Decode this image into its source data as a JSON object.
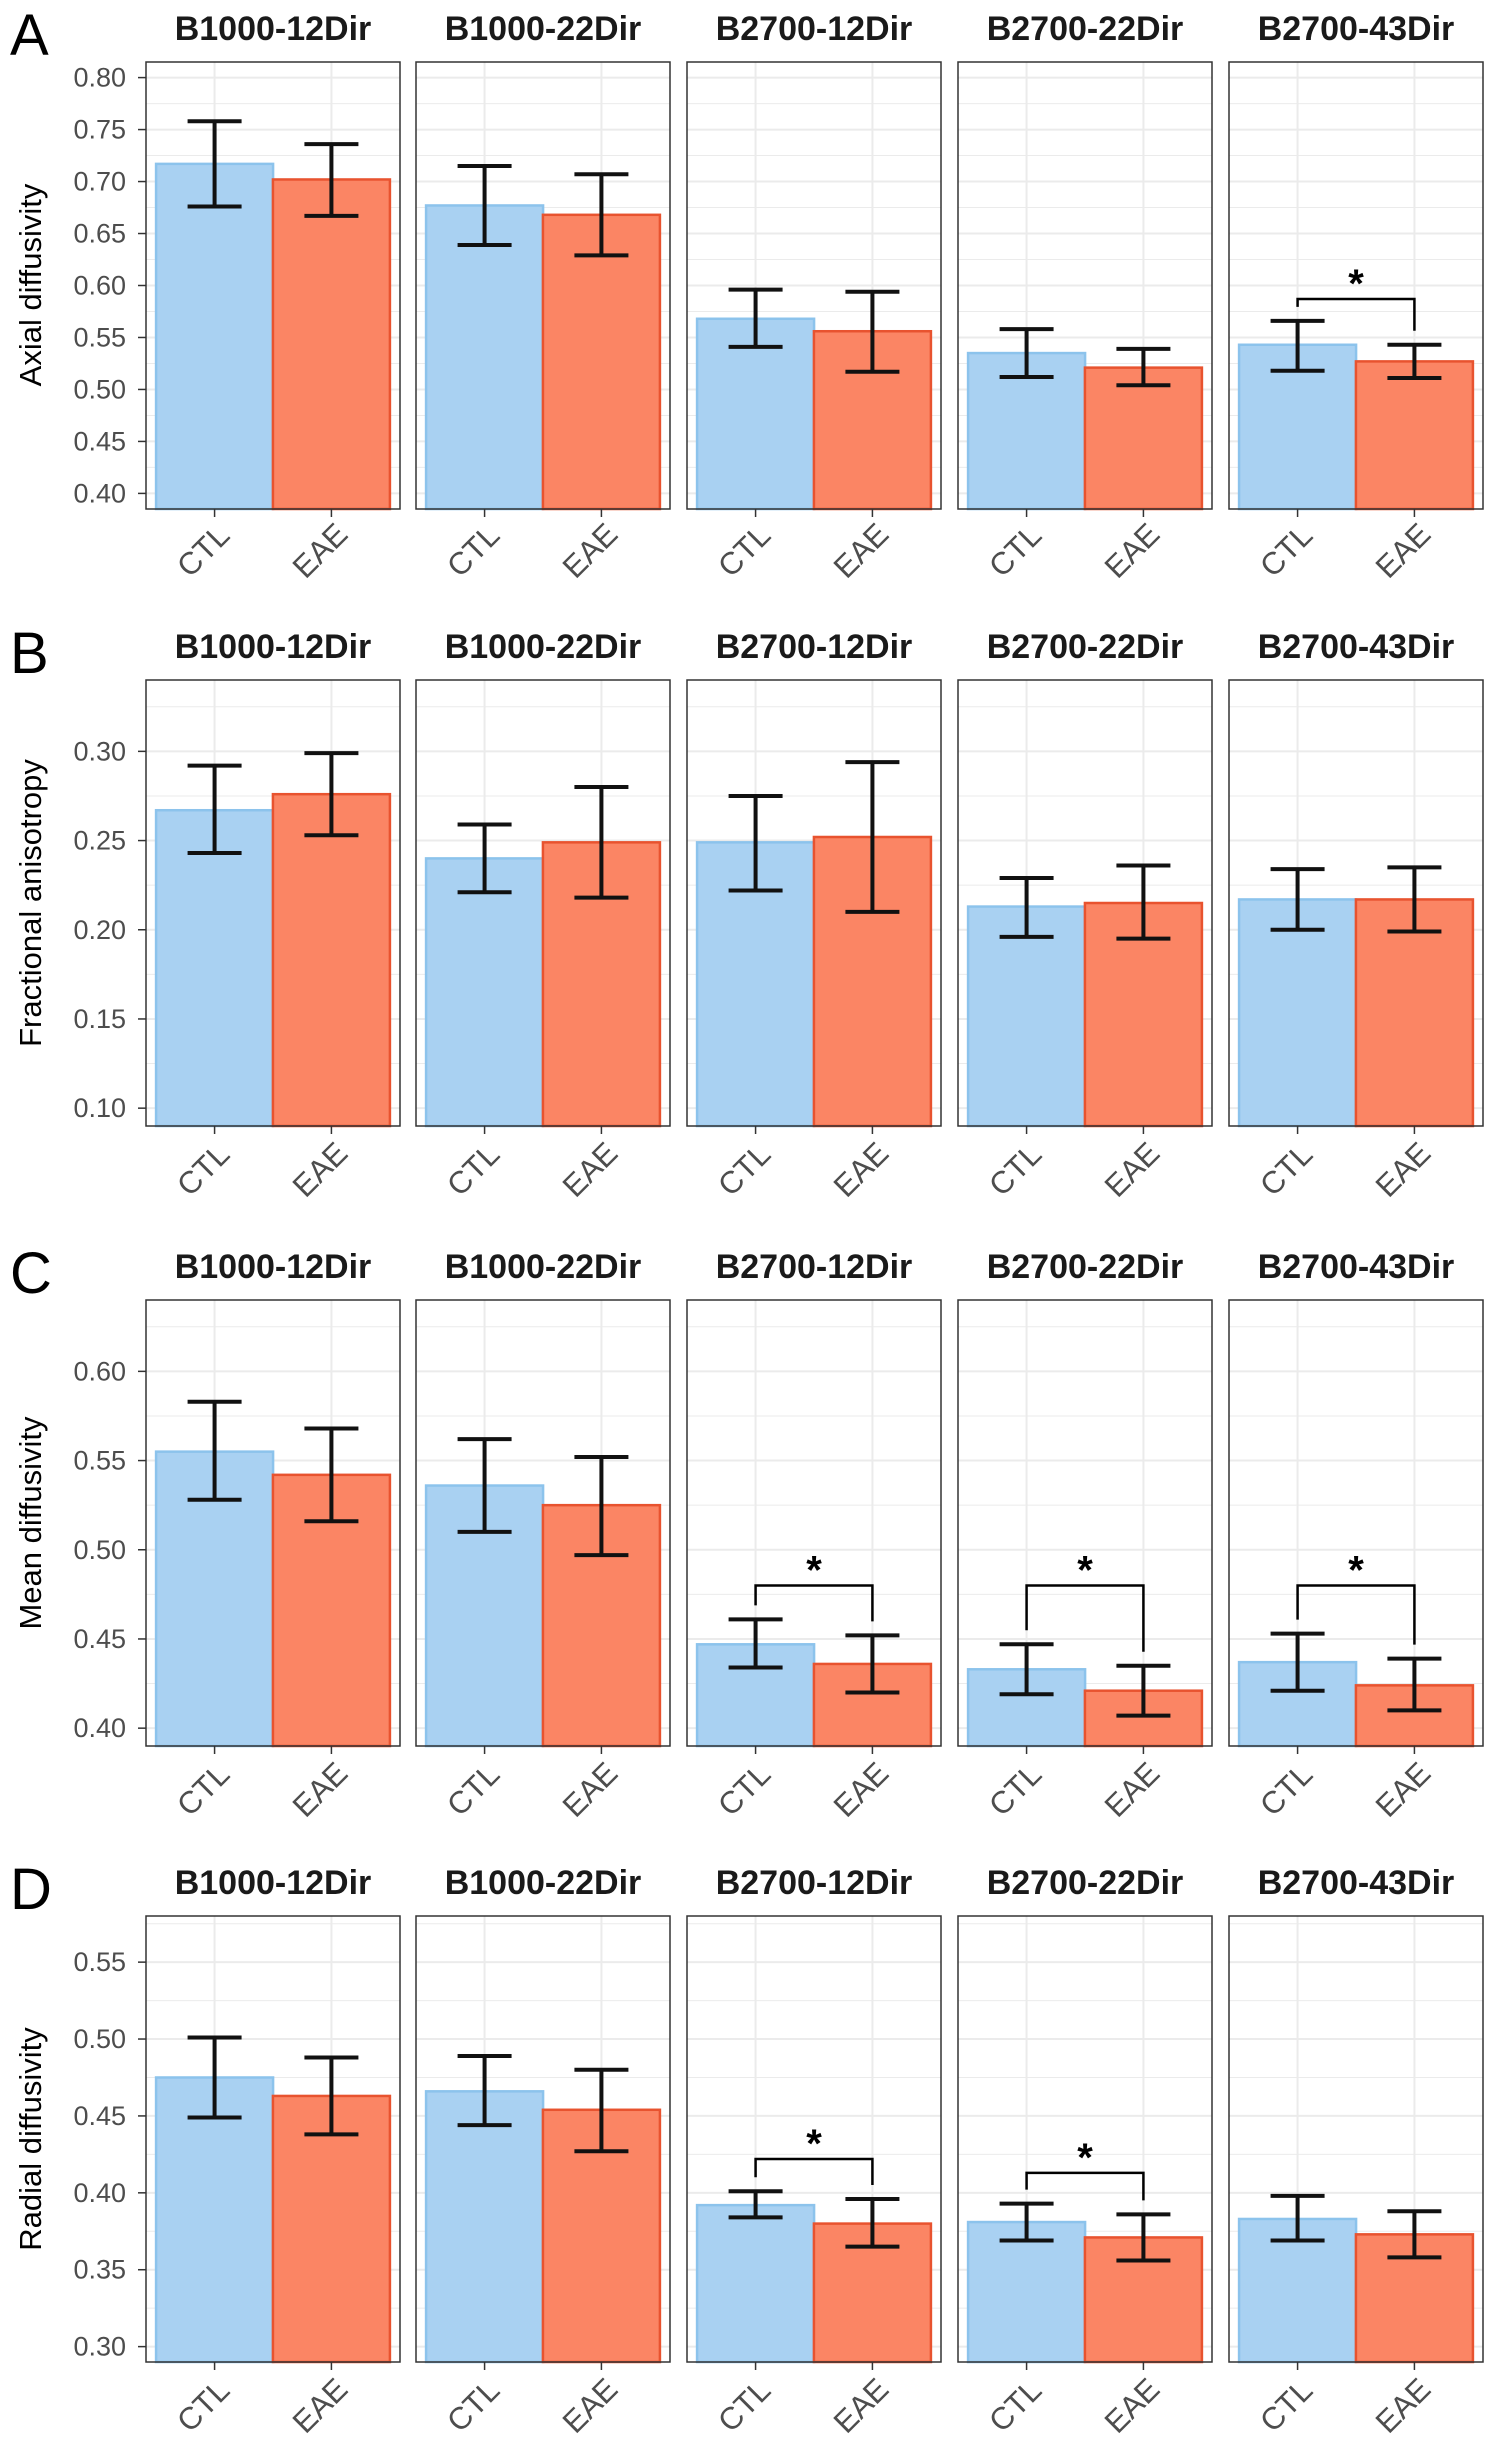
{
  "figure": {
    "colors": {
      "CTL_fill": "#a9d1f2",
      "CTL_stroke": "#8cc3ec",
      "EAE_fill": "#fb8564",
      "EAE_stroke": "#e8532f",
      "error_bar": "#111111",
      "grid": "#ebebeb",
      "panel_border": "#333333"
    }
  },
  "chart_data": [
    {
      "type": "bar",
      "panel_letter": "A",
      "ylabel": "Axial diffusivity",
      "ylim": [
        0.385,
        0.815
      ],
      "yticks": [
        0.4,
        0.45,
        0.5,
        0.55,
        0.6,
        0.65,
        0.7,
        0.75,
        0.8
      ],
      "ytick_labels": [
        "0.40",
        "0.45",
        "0.50",
        "0.55",
        "0.60",
        "0.65",
        "0.70",
        "0.75",
        "0.80"
      ],
      "categories": [
        "CTL",
        "EAE"
      ],
      "facets": [
        {
          "title": "B1000-12Dir",
          "bars": [
            {
              "group": "CTL",
              "value": 0.717,
              "err_low": 0.676,
              "err_high": 0.758
            },
            {
              "group": "EAE",
              "value": 0.702,
              "err_low": 0.667,
              "err_high": 0.736
            }
          ]
        },
        {
          "title": "B1000-22Dir",
          "bars": [
            {
              "group": "CTL",
              "value": 0.677,
              "err_low": 0.639,
              "err_high": 0.715
            },
            {
              "group": "EAE",
              "value": 0.668,
              "err_low": 0.629,
              "err_high": 0.707
            }
          ]
        },
        {
          "title": "B2700-12Dir",
          "bars": [
            {
              "group": "CTL",
              "value": 0.568,
              "err_low": 0.541,
              "err_high": 0.596
            },
            {
              "group": "EAE",
              "value": 0.556,
              "err_low": 0.517,
              "err_high": 0.594
            }
          ]
        },
        {
          "title": "B2700-22Dir",
          "bars": [
            {
              "group": "CTL",
              "value": 0.535,
              "err_low": 0.512,
              "err_high": 0.558
            },
            {
              "group": "EAE",
              "value": 0.521,
              "err_low": 0.504,
              "err_high": 0.539
            }
          ]
        },
        {
          "title": "B2700-43Dir",
          "significance": "*",
          "sig_bracket_y": 0.587,
          "bars": [
            {
              "group": "CTL",
              "value": 0.543,
              "err_low": 0.518,
              "err_high": 0.566
            },
            {
              "group": "EAE",
              "value": 0.527,
              "err_low": 0.511,
              "err_high": 0.543
            }
          ]
        }
      ]
    },
    {
      "type": "bar",
      "panel_letter": "B",
      "ylabel": "Fractional anisotropy",
      "ylim": [
        0.09,
        0.34
      ],
      "yticks": [
        0.1,
        0.15,
        0.2,
        0.25,
        0.3
      ],
      "ytick_labels": [
        "0.10",
        "0.15",
        "0.20",
        "0.25",
        "0.30"
      ],
      "categories": [
        "CTL",
        "EAE"
      ],
      "facets": [
        {
          "title": "B1000-12Dir",
          "bars": [
            {
              "group": "CTL",
              "value": 0.267,
              "err_low": 0.243,
              "err_high": 0.292
            },
            {
              "group": "EAE",
              "value": 0.276,
              "err_low": 0.253,
              "err_high": 0.299
            }
          ]
        },
        {
          "title": "B1000-22Dir",
          "bars": [
            {
              "group": "CTL",
              "value": 0.24,
              "err_low": 0.221,
              "err_high": 0.259
            },
            {
              "group": "EAE",
              "value": 0.249,
              "err_low": 0.218,
              "err_high": 0.28
            }
          ]
        },
        {
          "title": "B2700-12Dir",
          "bars": [
            {
              "group": "CTL",
              "value": 0.249,
              "err_low": 0.222,
              "err_high": 0.275
            },
            {
              "group": "EAE",
              "value": 0.252,
              "err_low": 0.21,
              "err_high": 0.294
            }
          ]
        },
        {
          "title": "B2700-22Dir",
          "bars": [
            {
              "group": "CTL",
              "value": 0.213,
              "err_low": 0.196,
              "err_high": 0.229
            },
            {
              "group": "EAE",
              "value": 0.215,
              "err_low": 0.195,
              "err_high": 0.236
            }
          ]
        },
        {
          "title": "B2700-43Dir",
          "bars": [
            {
              "group": "CTL",
              "value": 0.217,
              "err_low": 0.2,
              "err_high": 0.234
            },
            {
              "group": "EAE",
              "value": 0.217,
              "err_low": 0.199,
              "err_high": 0.235
            }
          ]
        }
      ]
    },
    {
      "type": "bar",
      "panel_letter": "C",
      "ylabel": "Mean diffusivity",
      "ylim": [
        0.39,
        0.64
      ],
      "yticks": [
        0.4,
        0.45,
        0.5,
        0.55,
        0.6
      ],
      "ytick_labels": [
        "0.40",
        "0.45",
        "0.50",
        "0.55",
        "0.60"
      ],
      "categories": [
        "CTL",
        "EAE"
      ],
      "facets": [
        {
          "title": "B1000-12Dir",
          "bars": [
            {
              "group": "CTL",
              "value": 0.555,
              "err_low": 0.528,
              "err_high": 0.583
            },
            {
              "group": "EAE",
              "value": 0.542,
              "err_low": 0.516,
              "err_high": 0.568
            }
          ]
        },
        {
          "title": "B1000-22Dir",
          "bars": [
            {
              "group": "CTL",
              "value": 0.536,
              "err_low": 0.51,
              "err_high": 0.562
            },
            {
              "group": "EAE",
              "value": 0.525,
              "err_low": 0.497,
              "err_high": 0.552
            }
          ]
        },
        {
          "title": "B2700-12Dir",
          "significance": "*",
          "sig_bracket_y": 0.48,
          "bars": [
            {
              "group": "CTL",
              "value": 0.447,
              "err_low": 0.434,
              "err_high": 0.461
            },
            {
              "group": "EAE",
              "value": 0.436,
              "err_low": 0.42,
              "err_high": 0.452
            }
          ]
        },
        {
          "title": "B2700-22Dir",
          "significance": "*",
          "sig_bracket_y": 0.48,
          "bars": [
            {
              "group": "CTL",
              "value": 0.433,
              "err_low": 0.419,
              "err_high": 0.447
            },
            {
              "group": "EAE",
              "value": 0.421,
              "err_low": 0.407,
              "err_high": 0.435
            }
          ]
        },
        {
          "title": "B2700-43Dir",
          "significance": "*",
          "sig_bracket_y": 0.48,
          "bars": [
            {
              "group": "CTL",
              "value": 0.437,
              "err_low": 0.421,
              "err_high": 0.453
            },
            {
              "group": "EAE",
              "value": 0.424,
              "err_low": 0.41,
              "err_high": 0.439
            }
          ]
        }
      ]
    },
    {
      "type": "bar",
      "panel_letter": "D",
      "ylabel": "Radial diffusivity",
      "ylim": [
        0.29,
        0.58
      ],
      "yticks": [
        0.3,
        0.35,
        0.4,
        0.45,
        0.5,
        0.55
      ],
      "ytick_labels": [
        "0.30",
        "0.35",
        "0.40",
        "0.45",
        "0.50",
        "0.55"
      ],
      "categories": [
        "CTL",
        "EAE"
      ],
      "facets": [
        {
          "title": "B1000-12Dir",
          "bars": [
            {
              "group": "CTL",
              "value": 0.475,
              "err_low": 0.449,
              "err_high": 0.501
            },
            {
              "group": "EAE",
              "value": 0.463,
              "err_low": 0.438,
              "err_high": 0.488
            }
          ]
        },
        {
          "title": "B1000-22Dir",
          "bars": [
            {
              "group": "CTL",
              "value": 0.466,
              "err_low": 0.444,
              "err_high": 0.489
            },
            {
              "group": "EAE",
              "value": 0.454,
              "err_low": 0.427,
              "err_high": 0.48
            }
          ]
        },
        {
          "title": "B2700-12Dir",
          "significance": "*",
          "sig_bracket_y": 0.422,
          "bars": [
            {
              "group": "CTL",
              "value": 0.392,
              "err_low": 0.384,
              "err_high": 0.401
            },
            {
              "group": "EAE",
              "value": 0.38,
              "err_low": 0.365,
              "err_high": 0.396
            }
          ]
        },
        {
          "title": "B2700-22Dir",
          "significance": "*",
          "sig_bracket_y": 0.413,
          "bars": [
            {
              "group": "CTL",
              "value": 0.381,
              "err_low": 0.369,
              "err_high": 0.393
            },
            {
              "group": "EAE",
              "value": 0.371,
              "err_low": 0.356,
              "err_high": 0.386
            }
          ]
        },
        {
          "title": "B2700-43Dir",
          "bars": [
            {
              "group": "CTL",
              "value": 0.383,
              "err_low": 0.369,
              "err_high": 0.398
            },
            {
              "group": "EAE",
              "value": 0.373,
              "err_low": 0.358,
              "err_high": 0.388
            }
          ]
        }
      ]
    }
  ]
}
